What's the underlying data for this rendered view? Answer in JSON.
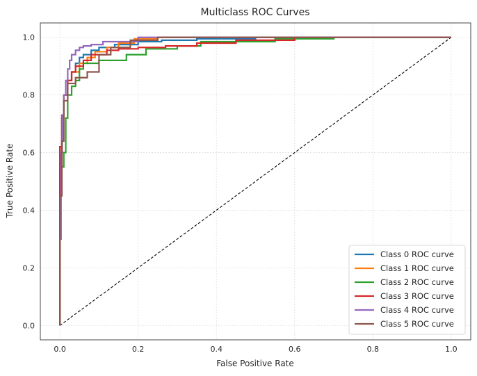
{
  "chart_data": {
    "type": "line",
    "title": "Multiclass ROC Curves",
    "xlabel": "False Positive Rate",
    "ylabel": "True Positive Rate",
    "xlim": [
      -0.05,
      1.05
    ],
    "ylim": [
      -0.05,
      1.05
    ],
    "xticks": [
      0.0,
      0.2,
      0.4,
      0.6,
      0.8,
      1.0
    ],
    "yticks": [
      0.0,
      0.2,
      0.4,
      0.6,
      0.8,
      1.0
    ],
    "xtick_labels": [
      "0.0",
      "0.2",
      "0.4",
      "0.6",
      "0.8",
      "1.0"
    ],
    "ytick_labels": [
      "0.0",
      "0.2",
      "0.4",
      "0.6",
      "0.8",
      "1.0"
    ],
    "grid": true,
    "legend_position": "bottom-right",
    "series": [
      {
        "name": "Class 0 ROC curve",
        "color": "#1f77b4",
        "x": [
          0,
          0,
          0.005,
          0.005,
          0.01,
          0.01,
          0.02,
          0.02,
          0.03,
          0.03,
          0.04,
          0.04,
          0.05,
          0.05,
          0.06,
          0.06,
          0.08,
          0.08,
          0.1,
          0.1,
          0.14,
          0.14,
          0.2,
          0.2,
          0.26,
          0.26,
          0.35,
          0.35,
          0.5,
          0.5,
          1.0
        ],
        "y": [
          0,
          0.62,
          0.62,
          0.72,
          0.72,
          0.8,
          0.8,
          0.85,
          0.85,
          0.88,
          0.88,
          0.91,
          0.91,
          0.93,
          0.93,
          0.94,
          0.94,
          0.955,
          0.955,
          0.965,
          0.965,
          0.975,
          0.975,
          0.985,
          0.985,
          0.99,
          0.99,
          0.995,
          0.995,
          1.0,
          1.0
        ]
      },
      {
        "name": "Class 1 ROC curve",
        "color": "#ff7f0e",
        "x": [
          0,
          0,
          0.005,
          0.005,
          0.01,
          0.01,
          0.02,
          0.02,
          0.03,
          0.03,
          0.05,
          0.05,
          0.07,
          0.07,
          0.09,
          0.09,
          0.12,
          0.12,
          0.15,
          0.15,
          0.19,
          0.19,
          0.25,
          0.25,
          1.0
        ],
        "y": [
          0,
          0.6,
          0.6,
          0.72,
          0.72,
          0.8,
          0.8,
          0.85,
          0.85,
          0.88,
          0.88,
          0.91,
          0.91,
          0.93,
          0.93,
          0.95,
          0.95,
          0.965,
          0.965,
          0.98,
          0.98,
          0.995,
          0.995,
          1.0,
          1.0
        ]
      },
      {
        "name": "Class 2 ROC curve",
        "color": "#2ca02c",
        "x": [
          0,
          0,
          0.005,
          0.005,
          0.01,
          0.01,
          0.015,
          0.015,
          0.02,
          0.02,
          0.03,
          0.03,
          0.04,
          0.04,
          0.05,
          0.05,
          0.06,
          0.06,
          0.1,
          0.1,
          0.17,
          0.17,
          0.22,
          0.22,
          0.3,
          0.3,
          0.36,
          0.36,
          0.55,
          0.55,
          0.7,
          0.7,
          1.0
        ],
        "y": [
          0,
          0.5,
          0.5,
          0.55,
          0.55,
          0.6,
          0.6,
          0.72,
          0.72,
          0.8,
          0.8,
          0.83,
          0.83,
          0.85,
          0.85,
          0.89,
          0.89,
          0.91,
          0.91,
          0.92,
          0.92,
          0.94,
          0.94,
          0.96,
          0.96,
          0.97,
          0.97,
          0.985,
          0.985,
          0.995,
          0.995,
          1.0,
          1.0
        ]
      },
      {
        "name": "Class 3 ROC curve",
        "color": "#d62728",
        "x": [
          0,
          0,
          0.005,
          0.005,
          0.01,
          0.01,
          0.02,
          0.02,
          0.03,
          0.03,
          0.04,
          0.04,
          0.06,
          0.06,
          0.08,
          0.08,
          0.12,
          0.12,
          0.15,
          0.15,
          0.2,
          0.2,
          0.27,
          0.27,
          0.35,
          0.35,
          0.45,
          0.45,
          0.6,
          0.6,
          1.0
        ],
        "y": [
          0,
          0.62,
          0.62,
          0.73,
          0.73,
          0.8,
          0.8,
          0.85,
          0.85,
          0.88,
          0.88,
          0.9,
          0.9,
          0.92,
          0.92,
          0.94,
          0.94,
          0.955,
          0.955,
          0.96,
          0.96,
          0.965,
          0.965,
          0.97,
          0.97,
          0.98,
          0.98,
          0.99,
          0.99,
          1.0,
          1.0
        ]
      },
      {
        "name": "Class 4 ROC curve",
        "color": "#9467bd",
        "x": [
          0,
          0,
          0.003,
          0.003,
          0.006,
          0.006,
          0.01,
          0.01,
          0.015,
          0.015,
          0.02,
          0.02,
          0.025,
          0.025,
          0.03,
          0.03,
          0.04,
          0.04,
          0.05,
          0.05,
          0.06,
          0.06,
          0.08,
          0.08,
          0.11,
          0.11,
          0.2,
          0.2,
          1.0
        ],
        "y": [
          0,
          0.3,
          0.3,
          0.6,
          0.6,
          0.73,
          0.73,
          0.8,
          0.8,
          0.85,
          0.85,
          0.89,
          0.89,
          0.92,
          0.92,
          0.94,
          0.94,
          0.955,
          0.955,
          0.965,
          0.965,
          0.97,
          0.97,
          0.975,
          0.975,
          0.985,
          0.985,
          1.0,
          1.0
        ]
      },
      {
        "name": "Class 5 ROC curve",
        "color": "#8c564b",
        "x": [
          0,
          0,
          0.005,
          0.005,
          0.01,
          0.01,
          0.02,
          0.02,
          0.04,
          0.04,
          0.07,
          0.07,
          0.1,
          0.1,
          0.13,
          0.13,
          0.18,
          0.18,
          0.25,
          0.25,
          1.0
        ],
        "y": [
          0,
          0.45,
          0.45,
          0.64,
          0.64,
          0.78,
          0.78,
          0.84,
          0.84,
          0.86,
          0.86,
          0.88,
          0.88,
          0.94,
          0.94,
          0.965,
          0.965,
          0.99,
          0.99,
          1.0,
          1.0
        ]
      }
    ],
    "reference_line": {
      "x": [
        0,
        1
      ],
      "y": [
        0,
        1
      ],
      "color": "#000000",
      "style": "dashed"
    }
  }
}
